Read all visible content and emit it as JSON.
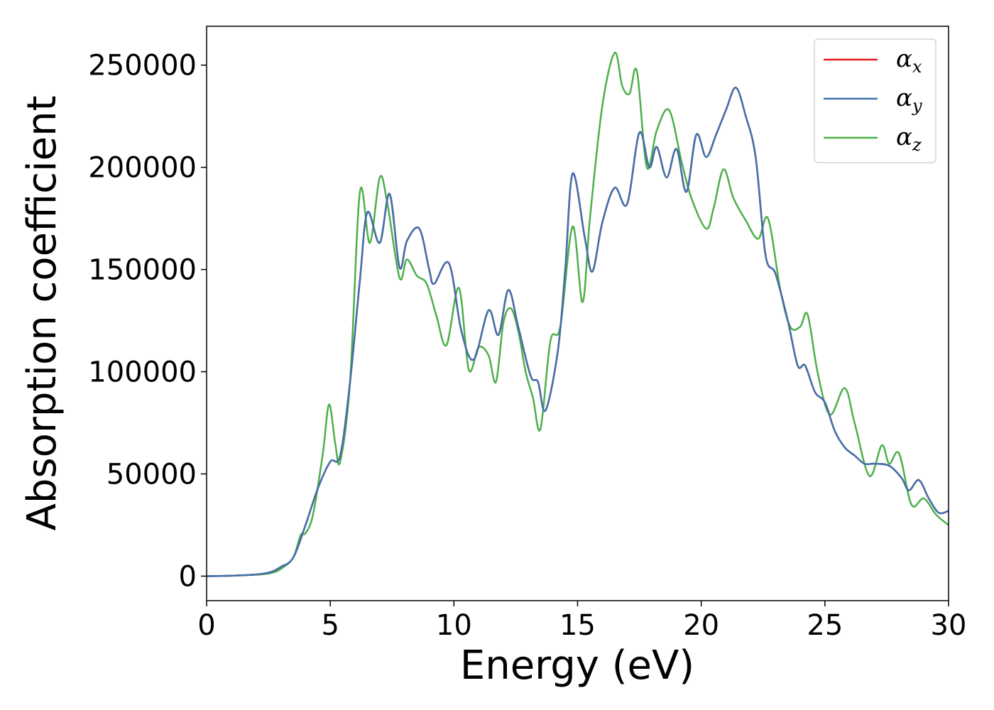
{
  "chart_data": {
    "type": "line",
    "title": "",
    "xlabel": "Energy (eV)",
    "ylabel": "Absorption coefficient",
    "xlim": [
      0,
      30
    ],
    "ylim": [
      -12000,
      269000
    ],
    "xticks": [
      0,
      5,
      10,
      15,
      20,
      25,
      30
    ],
    "xtick_labels": [
      "0",
      "5",
      "10",
      "15",
      "20",
      "25",
      "30"
    ],
    "yticks": [
      0,
      50000,
      100000,
      150000,
      200000,
      250000
    ],
    "ytick_labels": [
      "0",
      "50000",
      "100000",
      "150000",
      "200000",
      "250000"
    ],
    "grid": false,
    "legend_position": "top-right",
    "series": [
      {
        "name": "α",
        "subscript": "x",
        "color": "#e41a1c",
        "points": [
          [
            0,
            0
          ],
          [
            1,
            200
          ],
          [
            2,
            800
          ],
          [
            2.6,
            2000
          ],
          [
            3,
            4500
          ],
          [
            3.5,
            9000
          ],
          [
            4,
            25000
          ],
          [
            4.5,
            43000
          ],
          [
            5,
            56000
          ],
          [
            5.4,
            59000
          ],
          [
            5.8,
            95000
          ],
          [
            6.2,
            145000
          ],
          [
            6.5,
            178000
          ],
          [
            7,
            163000
          ],
          [
            7.4,
            187000
          ],
          [
            7.8,
            151000
          ],
          [
            8.1,
            164000
          ],
          [
            8.6,
            170000
          ],
          [
            9,
            150000
          ],
          [
            9.2,
            143000
          ],
          [
            9.8,
            153000
          ],
          [
            10.3,
            120000
          ],
          [
            10.8,
            106000
          ],
          [
            11.4,
            130000
          ],
          [
            11.8,
            118000
          ],
          [
            12.2,
            140000
          ],
          [
            12.6,
            122000
          ],
          [
            13.1,
            98000
          ],
          [
            13.4,
            95000
          ],
          [
            13.7,
            81000
          ],
          [
            14.2,
            110000
          ],
          [
            14.5,
            150000
          ],
          [
            14.8,
            197000
          ],
          [
            15.3,
            165000
          ],
          [
            15.6,
            149000
          ],
          [
            16,
            173000
          ],
          [
            16.5,
            190000
          ],
          [
            17,
            182000
          ],
          [
            17.5,
            217000
          ],
          [
            17.9,
            200000
          ],
          [
            18.2,
            210000
          ],
          [
            18.6,
            195000
          ],
          [
            19,
            209000
          ],
          [
            19.4,
            188000
          ],
          [
            19.8,
            216000
          ],
          [
            20.2,
            205000
          ],
          [
            20.6,
            216000
          ],
          [
            21,
            228000
          ],
          [
            21.4,
            239000
          ],
          [
            21.8,
            225000
          ],
          [
            22.2,
            205000
          ],
          [
            22.6,
            157000
          ],
          [
            23,
            148000
          ],
          [
            23.5,
            125000
          ],
          [
            23.9,
            103000
          ],
          [
            24.2,
            103000
          ],
          [
            24.6,
            90000
          ],
          [
            25,
            85000
          ],
          [
            25.4,
            71000
          ],
          [
            25.8,
            63000
          ],
          [
            26.2,
            59000
          ],
          [
            26.6,
            55000
          ],
          [
            27,
            55000
          ],
          [
            27.6,
            54000
          ],
          [
            28.1,
            48000
          ],
          [
            28.4,
            42000
          ],
          [
            28.8,
            47000
          ],
          [
            29.2,
            38000
          ],
          [
            29.6,
            31000
          ],
          [
            30,
            32000
          ]
        ]
      },
      {
        "name": "α",
        "subscript": "y",
        "color": "#3f72ae",
        "points": [
          [
            0,
            0
          ],
          [
            1,
            200
          ],
          [
            2,
            800
          ],
          [
            2.6,
            2000
          ],
          [
            3,
            4500
          ],
          [
            3.5,
            9000
          ],
          [
            4,
            25000
          ],
          [
            4.5,
            43000
          ],
          [
            5,
            56000
          ],
          [
            5.4,
            59000
          ],
          [
            5.8,
            95000
          ],
          [
            6.2,
            145000
          ],
          [
            6.5,
            178000
          ],
          [
            7,
            163000
          ],
          [
            7.4,
            187000
          ],
          [
            7.8,
            151000
          ],
          [
            8.1,
            164000
          ],
          [
            8.6,
            170000
          ],
          [
            9,
            150000
          ],
          [
            9.2,
            143000
          ],
          [
            9.8,
            153000
          ],
          [
            10.3,
            120000
          ],
          [
            10.8,
            106000
          ],
          [
            11.4,
            130000
          ],
          [
            11.8,
            118000
          ],
          [
            12.2,
            140000
          ],
          [
            12.6,
            122000
          ],
          [
            13.1,
            98000
          ],
          [
            13.4,
            95000
          ],
          [
            13.7,
            81000
          ],
          [
            14.2,
            110000
          ],
          [
            14.5,
            150000
          ],
          [
            14.8,
            197000
          ],
          [
            15.3,
            165000
          ],
          [
            15.6,
            149000
          ],
          [
            16,
            173000
          ],
          [
            16.5,
            190000
          ],
          [
            17,
            182000
          ],
          [
            17.5,
            217000
          ],
          [
            17.9,
            200000
          ],
          [
            18.2,
            210000
          ],
          [
            18.6,
            195000
          ],
          [
            19,
            209000
          ],
          [
            19.4,
            188000
          ],
          [
            19.8,
            216000
          ],
          [
            20.2,
            205000
          ],
          [
            20.6,
            216000
          ],
          [
            21,
            228000
          ],
          [
            21.4,
            239000
          ],
          [
            21.8,
            225000
          ],
          [
            22.2,
            205000
          ],
          [
            22.6,
            157000
          ],
          [
            23,
            148000
          ],
          [
            23.5,
            125000
          ],
          [
            23.9,
            103000
          ],
          [
            24.2,
            103000
          ],
          [
            24.6,
            90000
          ],
          [
            25,
            85000
          ],
          [
            25.4,
            71000
          ],
          [
            25.8,
            63000
          ],
          [
            26.2,
            59000
          ],
          [
            26.6,
            55000
          ],
          [
            27,
            55000
          ],
          [
            27.6,
            54000
          ],
          [
            28.1,
            48000
          ],
          [
            28.4,
            42000
          ],
          [
            28.8,
            47000
          ],
          [
            29.2,
            38000
          ],
          [
            29.6,
            31000
          ],
          [
            30,
            32000
          ]
        ]
      },
      {
        "name": "α",
        "subscript": "z",
        "color": "#4daf4a",
        "points": [
          [
            0,
            0
          ],
          [
            1,
            200
          ],
          [
            2,
            700
          ],
          [
            2.6,
            1500
          ],
          [
            3,
            3500
          ],
          [
            3.5,
            9000
          ],
          [
            3.8,
            20000
          ],
          [
            4,
            21000
          ],
          [
            4.3,
            30000
          ],
          [
            4.7,
            60000
          ],
          [
            4.95,
            84000
          ],
          [
            5.2,
            65000
          ],
          [
            5.4,
            56000
          ],
          [
            5.8,
            95000
          ],
          [
            6.2,
            188000
          ],
          [
            6.6,
            163000
          ],
          [
            7,
            195000
          ],
          [
            7.3,
            183000
          ],
          [
            7.8,
            146000
          ],
          [
            8.1,
            155000
          ],
          [
            8.5,
            147000
          ],
          [
            8.9,
            143000
          ],
          [
            9.3,
            127000
          ],
          [
            9.7,
            113000
          ],
          [
            10.2,
            141000
          ],
          [
            10.6,
            101000
          ],
          [
            11,
            112000
          ],
          [
            11.4,
            108000
          ],
          [
            11.7,
            95000
          ],
          [
            12,
            124000
          ],
          [
            12.3,
            131000
          ],
          [
            12.6,
            120000
          ],
          [
            12.9,
            100000
          ],
          [
            13.2,
            87000
          ],
          [
            13.5,
            72000
          ],
          [
            13.9,
            115000
          ],
          [
            14.3,
            122000
          ],
          [
            14.8,
            171000
          ],
          [
            15.2,
            134000
          ],
          [
            15.5,
            175000
          ],
          [
            16,
            230000
          ],
          [
            16.5,
            256000
          ],
          [
            16.8,
            240000
          ],
          [
            17.1,
            236000
          ],
          [
            17.4,
            247000
          ],
          [
            17.8,
            200000
          ],
          [
            18.2,
            218000
          ],
          [
            18.7,
            228000
          ],
          [
            19.2,
            203000
          ],
          [
            19.6,
            185000
          ],
          [
            20.2,
            170000
          ],
          [
            20.5,
            180000
          ],
          [
            20.9,
            199000
          ],
          [
            21.3,
            185000
          ],
          [
            21.8,
            174000
          ],
          [
            22.3,
            165000
          ],
          [
            22.7,
            175000
          ],
          [
            23.2,
            140000
          ],
          [
            23.6,
            122000
          ],
          [
            24,
            122000
          ],
          [
            24.3,
            128000
          ],
          [
            24.7,
            100000
          ],
          [
            25.2,
            79000
          ],
          [
            25.8,
            92000
          ],
          [
            26.2,
            75000
          ],
          [
            26.8,
            49000
          ],
          [
            27.3,
            64000
          ],
          [
            27.6,
            55000
          ],
          [
            28,
            60000
          ],
          [
            28.5,
            35000
          ],
          [
            29,
            38000
          ],
          [
            29.5,
            30000
          ],
          [
            30,
            25000
          ]
        ]
      }
    ]
  }
}
